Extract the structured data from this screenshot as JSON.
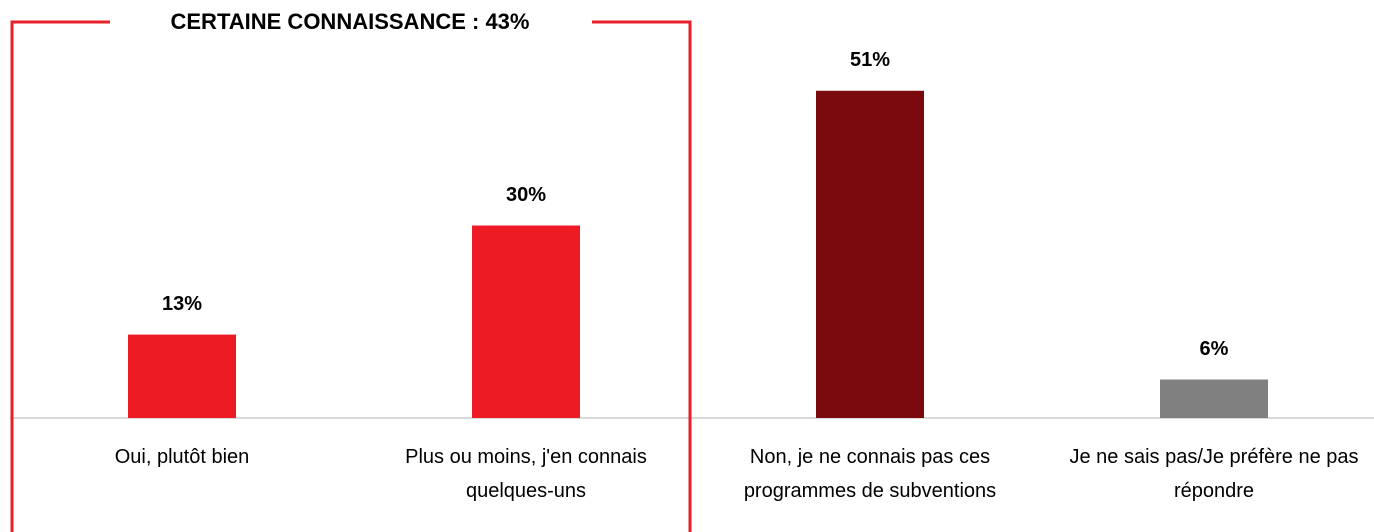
{
  "chart_data": {
    "type": "bar",
    "annotation": "CERTAINE CONNAISSANCE : 43%",
    "categories": [
      "Oui, plutôt bien",
      "Plus ou moins, j'en connais quelques-uns",
      "Non, je ne connais pas ces programmes de subventions",
      "Je ne sais pas/Je préfère ne pas répondre"
    ],
    "values": [
      13,
      30,
      51,
      6
    ],
    "value_labels": [
      "13%",
      "30%",
      "51%",
      "6%"
    ],
    "colors": [
      "#ed1c24",
      "#ed1c24",
      "#7b0a0e",
      "#808080"
    ],
    "ylim": [
      0,
      60
    ]
  }
}
